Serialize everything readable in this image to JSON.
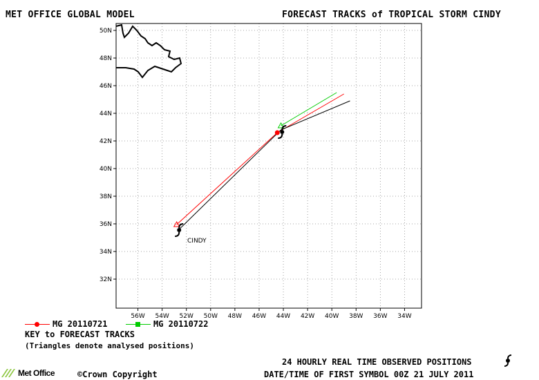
{
  "header": {
    "left_title": "MET OFFICE GLOBAL MODEL",
    "right_title": "FORECAST TRACKS of TROPICAL STORM CINDY"
  },
  "map": {
    "lat_labels": [
      "50N",
      "48N",
      "46N",
      "44N",
      "42N",
      "40N",
      "38N",
      "36N",
      "34N",
      "32N"
    ],
    "lon_labels": [
      "56W",
      "54W",
      "52W",
      "50W",
      "48W",
      "46W",
      "44W",
      "42W",
      "40W",
      "38W",
      "36W",
      "34W"
    ],
    "storm_label": "CINDY",
    "tracks": [
      {
        "name": "MG 20110721",
        "color": "#ff0000",
        "marker": "circle",
        "points": [
          [
            -52.8,
            35.95
          ],
          [
            -44.5,
            42.6
          ],
          [
            -39.0,
            45.4
          ]
        ]
      },
      {
        "name": "MG 20110722",
        "color": "#00cc00",
        "marker": "square",
        "points": [
          [
            -44.2,
            43.1
          ],
          [
            -39.6,
            45.5
          ]
        ]
      },
      {
        "name": "Observed",
        "color": "#000000",
        "marker": "storm",
        "points": [
          [
            -52.6,
            35.6
          ],
          [
            -44.2,
            42.8
          ],
          [
            -38.5,
            44.9
          ]
        ]
      }
    ],
    "storm_symbols": [
      [
        -52.6,
        35.55
      ],
      [
        -44.1,
        42.65
      ]
    ]
  },
  "key": {
    "track1_label": "MG 20110721",
    "track2_label": "MG 20110722",
    "title": "KEY to FORECAST TRACKS",
    "note": "(Triangles denote analysed positions)"
  },
  "footer": {
    "observed": "24 HOURLY REAL TIME OBSERVED POSITIONS",
    "first_symbol": "DATE/TIME OF FIRST SYMBOL 00Z 21 JULY 2011",
    "copyright": "©Crown Copyright",
    "logo_text": "Met Office"
  }
}
